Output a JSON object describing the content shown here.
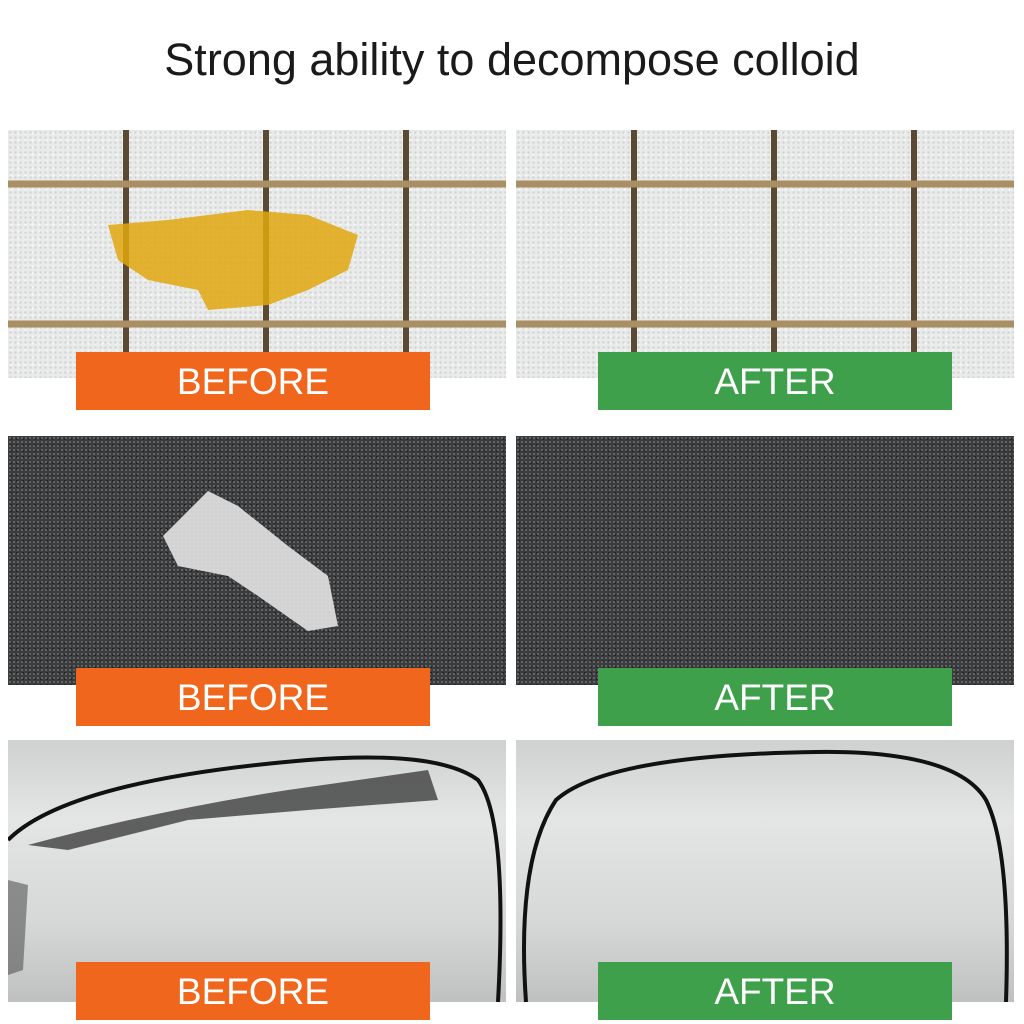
{
  "title": "Strong ability to decompose colloid",
  "rows": [
    {
      "before_label": "BEFORE",
      "after_label": "AFTER"
    },
    {
      "before_label": "BEFORE",
      "after_label": "AFTER"
    },
    {
      "before_label": "BEFORE",
      "after_label": "AFTER"
    }
  ],
  "colors": {
    "before": "#f0661c",
    "after": "#3ea04b"
  }
}
